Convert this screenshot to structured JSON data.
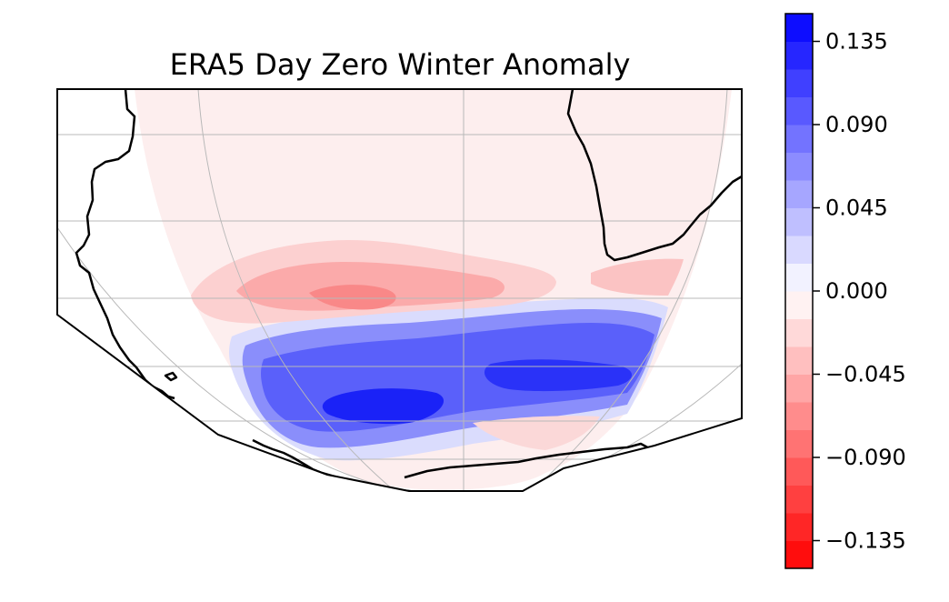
{
  "chart_data": {
    "type": "heatmap",
    "title": "ERA5 Day Zero Winter Anomaly",
    "projection": "orthographic map, Southern Hemisphere (South America to southern Africa, Antarctic coast at bottom)",
    "colormap": "bwr_r (blue positive, red negative)",
    "colorbar": {
      "orientation": "vertical",
      "placement": "right",
      "vmin": -0.15,
      "vmax": 0.15,
      "levels": [
        -0.15,
        -0.135,
        -0.12,
        -0.105,
        -0.09,
        -0.075,
        -0.06,
        -0.045,
        -0.03,
        -0.015,
        0.0,
        0.015,
        0.03,
        0.045,
        0.06,
        0.075,
        0.09,
        0.105,
        0.12,
        0.135,
        0.15
      ],
      "ticks": [
        0.135,
        0.09,
        0.045,
        0.0,
        -0.045,
        -0.09,
        -0.135
      ],
      "tick_labels": [
        "0.135",
        "0.090",
        "0.045",
        "0.000",
        "−0.045",
        "−0.090",
        "−0.135"
      ]
    },
    "field_regions": [
      {
        "name": "weak negative background",
        "approx_value": -0.007
      },
      {
        "name": "negative band (~45°S)",
        "approx_value": -0.05
      },
      {
        "name": "negative core",
        "approx_value": -0.075
      },
      {
        "name": "positive band (~55°S)",
        "approx_value": 0.07
      },
      {
        "name": "positive core",
        "approx_value": 0.12
      }
    ],
    "gridlines": true
  }
}
